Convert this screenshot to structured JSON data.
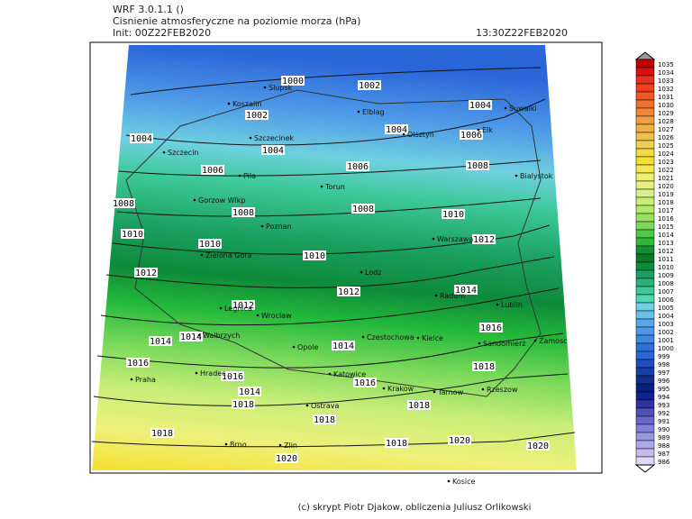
{
  "header": {
    "model": "WRF 3.0.1.1 ()",
    "title": "Cisnienie atmosferyczne na poziomie morza (hPa)",
    "init": "Init: 00Z22FEB2020",
    "valid": "13:30Z22FEB2020"
  },
  "colorbar": {
    "levels": [
      1035,
      1034,
      1033,
      1032,
      1031,
      1030,
      1029,
      1028,
      1027,
      1026,
      1025,
      1024,
      1023,
      1022,
      1021,
      1020,
      1019,
      1018,
      1017,
      1016,
      1015,
      1014,
      1013,
      1012,
      1011,
      1010,
      1009,
      1008,
      1007,
      1006,
      1005,
      1004,
      1003,
      1002,
      1001,
      1000,
      999,
      998,
      997,
      996,
      995,
      994,
      993,
      992,
      991,
      990,
      989,
      988,
      987,
      986
    ]
  },
  "isobar_labels": [
    "1000",
    "1002",
    "1002",
    "1004",
    "1004",
    "1004",
    "1004",
    "1006",
    "1006",
    "1006",
    "1008",
    "1008",
    "1008",
    "1008",
    "1010",
    "1010",
    "1010",
    "1010",
    "1012",
    "1012",
    "1012",
    "1012",
    "1014",
    "1014",
    "1014",
    "1014",
    "1016",
    "1016",
    "1016",
    "1016",
    "1018",
    "1018",
    "1018",
    "1018",
    "1018",
    "1020",
    "1020",
    "1014",
    "1018",
    "1020"
  ],
  "cities": [
    "Slupsk",
    "Koszalin",
    "Elblag",
    "Suwalki",
    "Szczecinek",
    "Olsztyn",
    "Elk",
    "Szczecin",
    "Pila",
    "Torun",
    "Bialystok",
    "Gorzow Wlkp",
    "Poznan",
    "Warszawa",
    "Zielona Gora",
    "Lodz",
    "Radom",
    "Legnica",
    "Lublin",
    "Wroclaw",
    "Czestochowa",
    "Kielce",
    "Walbrzych",
    "Opole",
    "Sandomierz",
    "Zamosc",
    "Hradec",
    "Katowice",
    "Praha",
    "Krakow",
    "Tarnow",
    "Rzeszow",
    "Ostrava",
    "Brno",
    "Zlin",
    "Kosice"
  ],
  "credit": "(c) skrypt Piotr Djakow, obliczenia Juliusz Orlikowski"
}
